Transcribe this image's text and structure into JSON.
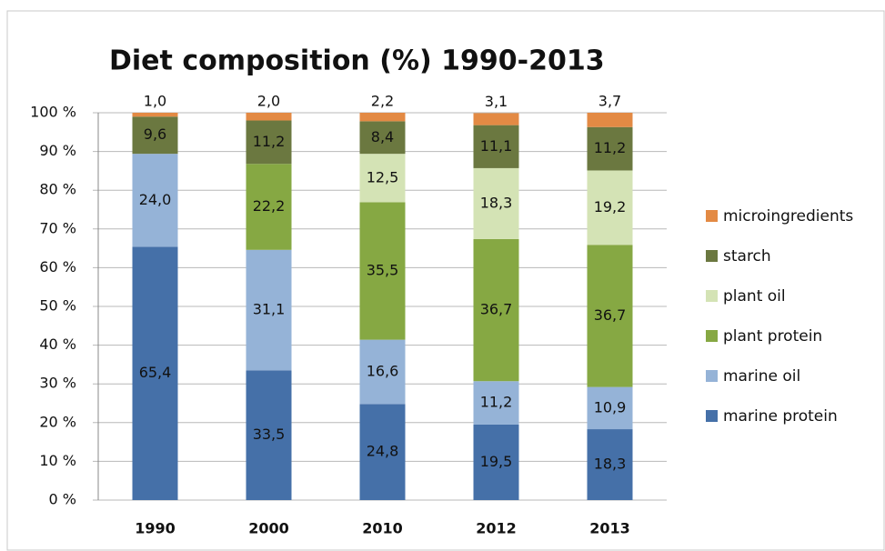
{
  "chart_data": {
    "type": "stacked_bar",
    "title": "Diet composition (%) 1990-2013",
    "categories": [
      "1990",
      "2000",
      "2010",
      "2012",
      "2013"
    ],
    "series": [
      {
        "name": "marine protein",
        "color": "#4570a8",
        "values": [
          65.4,
          33.5,
          24.8,
          19.5,
          18.3
        ],
        "value_labels": [
          "65,4",
          "33,5",
          "24,8",
          "19,5",
          "18,3"
        ]
      },
      {
        "name": "marine oil",
        "color": "#95b3d7",
        "values": [
          24.0,
          31.1,
          16.6,
          11.2,
          10.9
        ],
        "value_labels": [
          "24,0",
          "31,1",
          "16,6",
          "11,2",
          "10,9"
        ]
      },
      {
        "name": "plant protein",
        "color": "#86a843",
        "values": [
          null,
          22.2,
          35.5,
          36.7,
          36.7
        ],
        "value_labels": [
          null,
          "22,2",
          "35,5",
          "36,7",
          "36,7"
        ]
      },
      {
        "name": "plant oil",
        "color": "#d4e3b5",
        "values": [
          null,
          null,
          12.5,
          18.3,
          19.2
        ],
        "value_labels": [
          null,
          null,
          "12,5",
          "18,3",
          "19,2"
        ]
      },
      {
        "name": "starch",
        "color": "#6b7840",
        "values": [
          9.6,
          11.2,
          8.4,
          11.1,
          11.2
        ],
        "value_labels": [
          "9,6",
          "11,2",
          "8,4",
          "11,1",
          "11,2"
        ]
      },
      {
        "name": "microingredients",
        "color": "#e38a44",
        "values": [
          1.0,
          2.0,
          2.2,
          3.1,
          3.7
        ],
        "value_labels": [
          "1,0",
          "2,0",
          "2,2",
          "3,1",
          "3,7"
        ]
      }
    ],
    "ylim": [
      0,
      100
    ],
    "yticks": [
      {
        "value": 0,
        "label": "0 %"
      },
      {
        "value": 10,
        "label": "10 %"
      },
      {
        "value": 20,
        "label": "20 %"
      },
      {
        "value": 30,
        "label": "30 %"
      },
      {
        "value": 40,
        "label": "40 %"
      },
      {
        "value": 50,
        "label": "50 %"
      },
      {
        "value": 60,
        "label": "60 %"
      },
      {
        "value": 70,
        "label": "70 %"
      },
      {
        "value": 80,
        "label": "80 %"
      },
      {
        "value": 90,
        "label": "90 %"
      },
      {
        "value": 100,
        "label": "100 %"
      }
    ],
    "grid": true,
    "legend": "right"
  }
}
